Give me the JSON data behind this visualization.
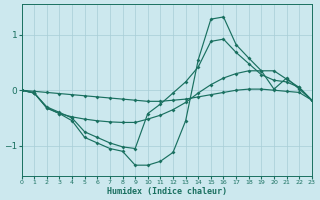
{
  "xlabel": "Humidex (Indice chaleur)",
  "bg_color": "#cce8ee",
  "grid_color": "#a8cdd6",
  "line_color": "#1a7060",
  "xlim": [
    0,
    23
  ],
  "ylim": [
    -1.55,
    1.55
  ],
  "yticks": [
    -1,
    0,
    1
  ],
  "xticks": [
    0,
    1,
    2,
    3,
    4,
    5,
    6,
    7,
    8,
    9,
    10,
    11,
    12,
    13,
    14,
    15,
    16,
    17,
    18,
    19,
    20,
    21,
    22,
    23
  ],
  "series": [
    {
      "x": [
        0,
        1,
        2,
        3,
        4,
        5,
        6,
        7,
        8,
        9,
        10,
        11,
        12,
        13,
        14,
        15,
        16,
        17,
        18,
        19,
        20,
        21,
        22,
        23
      ],
      "y": [
        0.0,
        -0.02,
        -0.04,
        -0.06,
        -0.08,
        -0.1,
        -0.12,
        -0.14,
        -0.16,
        -0.18,
        -0.2,
        -0.2,
        -0.18,
        -0.16,
        -0.12,
        -0.08,
        -0.04,
        0.0,
        0.02,
        0.02,
        0.0,
        -0.02,
        -0.04,
        -0.18
      ]
    },
    {
      "x": [
        0,
        1,
        2,
        3,
        4,
        5,
        6,
        7,
        8,
        9,
        10,
        11,
        12,
        13,
        14,
        15,
        16,
        17,
        18,
        19,
        20,
        21,
        22,
        23
      ],
      "y": [
        0.0,
        -0.05,
        -0.32,
        -0.42,
        -0.48,
        -0.52,
        -0.55,
        -0.57,
        -0.58,
        -0.58,
        -0.52,
        -0.45,
        -0.35,
        -0.22,
        -0.05,
        0.1,
        0.22,
        0.3,
        0.35,
        0.35,
        0.35,
        0.2,
        0.05,
        -0.18
      ]
    },
    {
      "x": [
        0,
        1,
        2,
        3,
        4,
        5,
        6,
        7,
        8,
        9,
        10,
        11,
        12,
        13,
        14,
        15,
        16,
        17,
        18,
        19,
        20,
        21,
        22,
        23
      ],
      "y": [
        0.0,
        -0.05,
        -0.32,
        -0.42,
        -0.55,
        -0.85,
        -0.95,
        -1.05,
        -1.1,
        -1.35,
        -1.35,
        -1.28,
        -1.12,
        -0.55,
        0.55,
        1.28,
        1.32,
        0.82,
        0.58,
        0.35,
        0.02,
        0.22,
        0.02,
        -0.18
      ]
    },
    {
      "x": [
        0,
        1,
        2,
        3,
        4,
        5,
        6,
        7,
        8,
        9,
        10,
        11,
        12,
        13,
        14,
        15,
        16,
        17,
        18,
        19,
        20,
        21,
        22,
        23
      ],
      "y": [
        0.0,
        -0.05,
        -0.3,
        -0.4,
        -0.5,
        -0.75,
        -0.85,
        -0.95,
        -1.02,
        -1.05,
        -0.42,
        -0.25,
        -0.05,
        0.15,
        0.42,
        0.88,
        0.92,
        0.68,
        0.48,
        0.28,
        0.18,
        0.15,
        0.05,
        -0.18
      ]
    }
  ]
}
